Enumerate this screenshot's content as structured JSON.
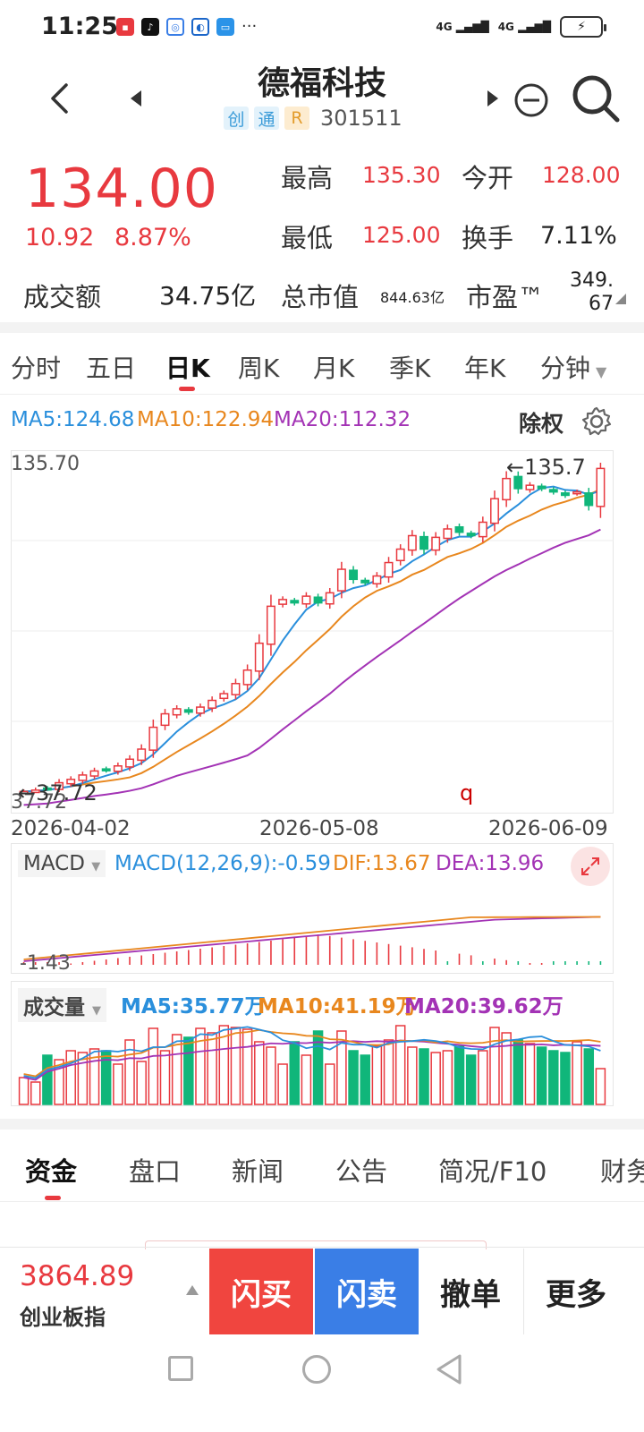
{
  "status_bar": {
    "time": "11:25",
    "dots": "···",
    "signal1": "4G",
    "signal2": "4G",
    "battery_icon": "charging-battery-icon"
  },
  "header": {
    "title": "德福科技",
    "tag1": "创",
    "tag2": "通",
    "tag3": "R",
    "code": "301511"
  },
  "quote": {
    "price": "134.00",
    "change": "10.92",
    "change_pct": "8.87%",
    "high_label": "最高",
    "high": "135.30",
    "open_label": "今开",
    "open": "128.00",
    "low_label": "最低",
    "low": "125.00",
    "turnover_label": "换手",
    "turnover": "7.11%",
    "amount_label": "成交额",
    "amount": "34.75亿",
    "mktcap_label": "总市值",
    "mktcap": "844.63亿",
    "pe_label": "市盈™",
    "pe_line1": "349.",
    "pe_line2": "67"
  },
  "period_tabs": [
    "分时",
    "五日",
    "日K",
    "周K",
    "月K",
    "季K",
    "年K",
    "分钟"
  ],
  "kline": {
    "ma5": "MA5:124.68",
    "ma10": "MA10:122.94",
    "ma20": "MA20:112.32",
    "adjust": "除权",
    "max_label": "135.70",
    "min_label": "37.72",
    "max_marker": "←135.7",
    "min_marker": "←37.72",
    "stray": "q",
    "dates": [
      "2026-04-02",
      "2026-05-08",
      "2026-06-09"
    ],
    "colors": {
      "up": "#e8393f",
      "down": "#10b67a",
      "ma5": "#2a8fdc",
      "ma10": "#e8871e",
      "ma20": "#a333b5"
    }
  },
  "macd": {
    "name": "MACD",
    "params": "MACD(12,26,9):-0.59",
    "dif": "DIF:13.67",
    "dea": "DEA:13.96",
    "low_label": "-1.43"
  },
  "volume": {
    "name": "成交量",
    "ma5": "MA5:35.77万",
    "ma10": "MA10:41.19万",
    "ma20": "MA20:39.62万"
  },
  "bottom_tabs": [
    "资金",
    "盘口",
    "新闻",
    "公告",
    "简况/F10",
    "财务"
  ],
  "footer": {
    "index_value": "3864.89",
    "index_name": "创业板指",
    "buy": "闪买",
    "sell": "闪卖",
    "cancel": "撤单",
    "more": "更多"
  },
  "chart_data": {
    "type": "candlestick",
    "x_range": [
      "2026-04-02",
      "2026-06-09"
    ],
    "y_range": [
      37.72,
      135.7
    ],
    "closes_approx": [
      37.9,
      38.3,
      38.8,
      40.5,
      41.5,
      42.8,
      44.0,
      44.2,
      45.5,
      47.5,
      50.5,
      57.0,
      61.0,
      62.5,
      61.5,
      63.0,
      65.0,
      67.0,
      70.0,
      74.0,
      82.0,
      93.0,
      95.0,
      94.0,
      96.0,
      94.0,
      97.0,
      104.0,
      101.0,
      100.0,
      102.0,
      106.0,
      110.0,
      114.0,
      110.0,
      113.5,
      116.0,
      115.0,
      114.0,
      118.0,
      125.0,
      131.0,
      128.0,
      129.0,
      128.0,
      127.0,
      126.0,
      127.0,
      123.0,
      134.0
    ]
  }
}
